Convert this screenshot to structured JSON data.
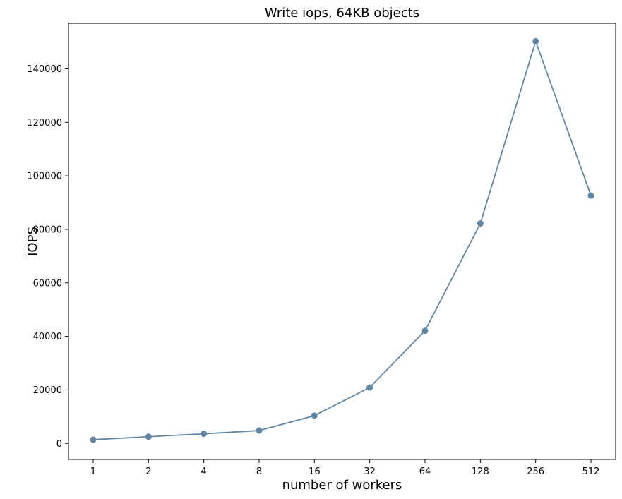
{
  "chart_data": {
    "type": "line",
    "title": "Write iops, 64KB objects",
    "xlabel": "number of workers",
    "ylabel": "IOPS",
    "categories": [
      "1",
      "2",
      "4",
      "8",
      "16",
      "32",
      "64",
      "128",
      "256",
      "512"
    ],
    "yticks": [
      "0",
      "20000",
      "40000",
      "60000",
      "80000",
      "100000",
      "120000",
      "140000"
    ],
    "ylim": [
      -6000,
      157000
    ],
    "grid": false,
    "series": [
      {
        "values": [
          1400,
          2500,
          3600,
          4800,
          10400,
          20900,
          42100,
          82200,
          150300,
          92600
        ],
        "color": "#5f87a5",
        "marker": "circle"
      }
    ]
  }
}
